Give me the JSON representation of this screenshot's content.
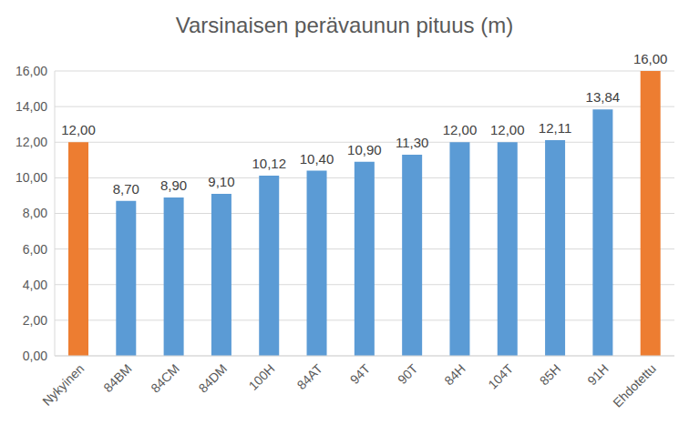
{
  "chart_data": {
    "type": "bar",
    "title": "Varsinaisen perävaunun pituus (m)",
    "categories": [
      "Nykyinen",
      "84BM",
      "84CM",
      "84DM",
      "100H",
      "84AT",
      "94T",
      "90T",
      "84H",
      "104T",
      "85H",
      "91H",
      "Ehdotettu"
    ],
    "values": [
      12.0,
      8.7,
      8.9,
      9.1,
      10.12,
      10.4,
      10.9,
      11.3,
      12.0,
      12.0,
      12.11,
      13.84,
      16.0
    ],
    "value_labels": [
      "12,00",
      "8,70",
      "8,90",
      "9,10",
      "10,12",
      "10,40",
      "10,90",
      "11,30",
      "12,00",
      "12,00",
      "12,11",
      "13,84",
      "16,00"
    ],
    "colors": [
      "#ed7d31",
      "#5b9bd5",
      "#5b9bd5",
      "#5b9bd5",
      "#5b9bd5",
      "#5b9bd5",
      "#5b9bd5",
      "#5b9bd5",
      "#5b9bd5",
      "#5b9bd5",
      "#5b9bd5",
      "#5b9bd5",
      "#ed7d31"
    ],
    "ylim": [
      0,
      16
    ],
    "yticks": [
      {
        "value": 0,
        "label": "0,00"
      },
      {
        "value": 2,
        "label": "2,00"
      },
      {
        "value": 4,
        "label": "4,00"
      },
      {
        "value": 6,
        "label": "6,00"
      },
      {
        "value": 8,
        "label": "8,00"
      },
      {
        "value": 10,
        "label": "10,00"
      },
      {
        "value": 12,
        "label": "12,00"
      },
      {
        "value": 14,
        "label": "14,00"
      },
      {
        "value": 16,
        "label": "16,00"
      }
    ],
    "grid": true,
    "data_labels": true
  }
}
